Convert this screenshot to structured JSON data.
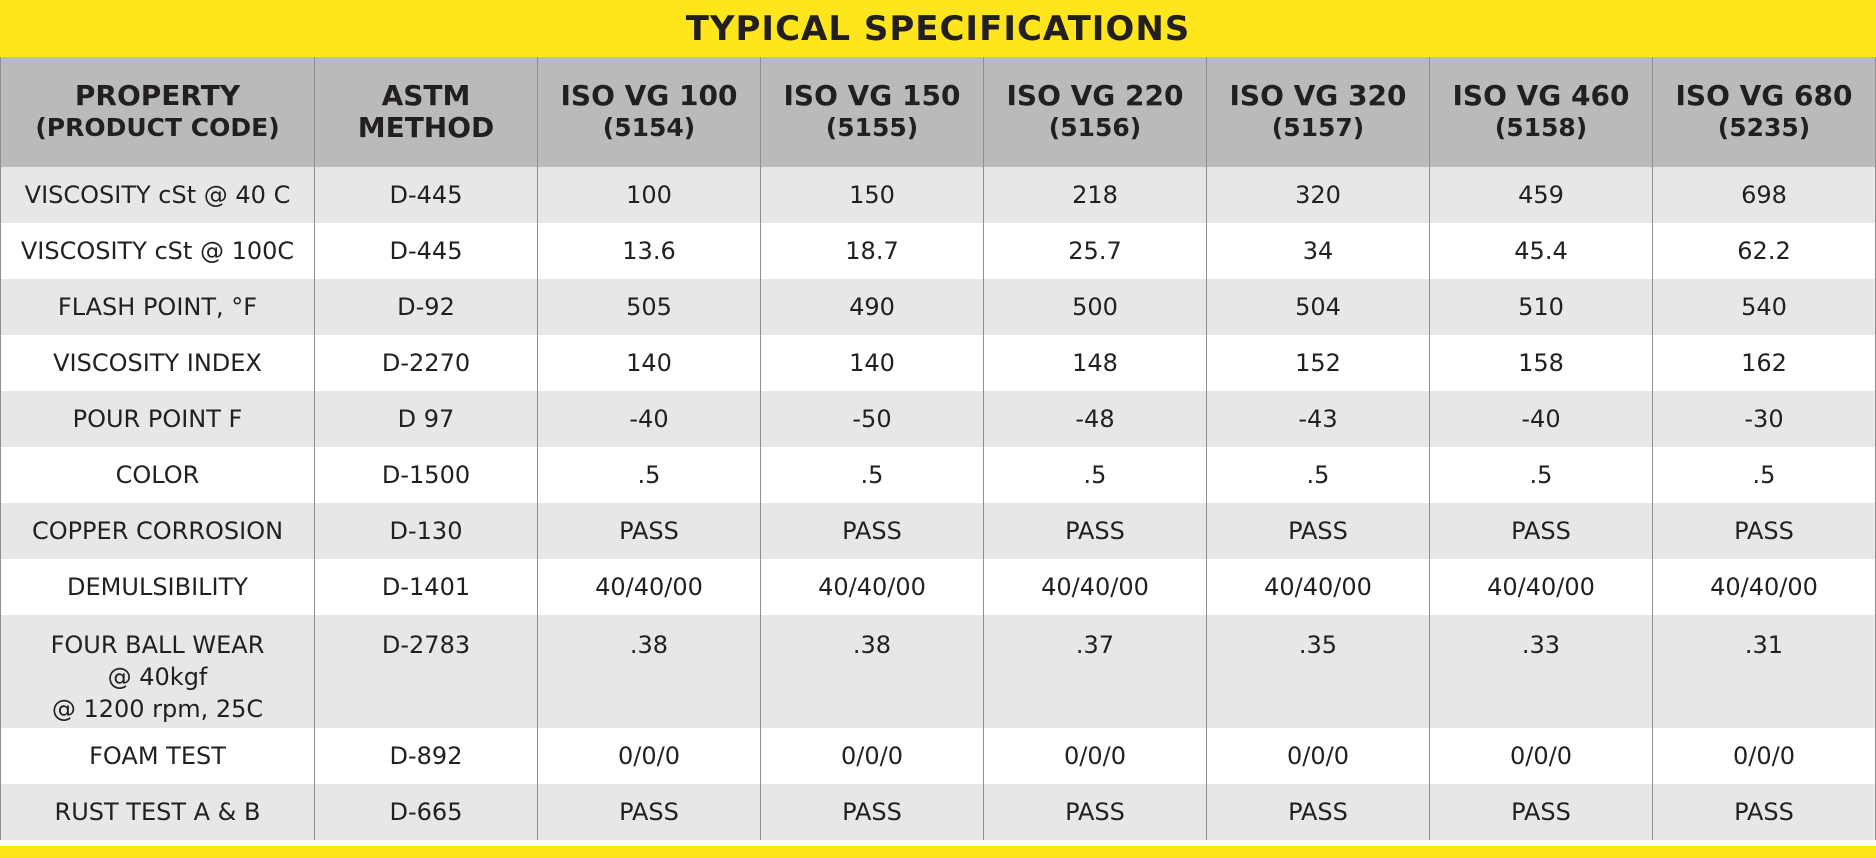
{
  "title": "TYPICAL SPECIFICATIONS",
  "columns": [
    {
      "line1": "PROPERTY",
      "line2": "(PRODUCT CODE)"
    },
    {
      "line1": "ASTM",
      "line2": "METHOD"
    },
    {
      "line1": "ISO VG 100",
      "line2": "(5154)"
    },
    {
      "line1": "ISO VG 150",
      "line2": "(5155)"
    },
    {
      "line1": "ISO VG 220",
      "line2": "(5156)"
    },
    {
      "line1": "ISO VG 320",
      "line2": "(5157)"
    },
    {
      "line1": "ISO VG 460",
      "line2": "(5158)"
    },
    {
      "line1": "ISO VG 680",
      "line2": "(5235)"
    }
  ],
  "rows": [
    {
      "property": [
        "VISCOSITY cSt @ 40 C"
      ],
      "method": "D-445",
      "values": [
        "100",
        "150",
        "218",
        "320",
        "459",
        "698"
      ]
    },
    {
      "property": [
        "VISCOSITY cSt @ 100C"
      ],
      "method": "D-445",
      "values": [
        "13.6",
        "18.7",
        "25.7",
        "34",
        "45.4",
        "62.2"
      ]
    },
    {
      "property": [
        "FLASH POINT, °F"
      ],
      "method": "D-92",
      "values": [
        "505",
        "490",
        "500",
        "504",
        "510",
        "540"
      ]
    },
    {
      "property": [
        "VISCOSITY INDEX"
      ],
      "method": "D-2270",
      "values": [
        "140",
        "140",
        "148",
        "152",
        "158",
        "162"
      ]
    },
    {
      "property": [
        "POUR POINT F"
      ],
      "method": "D 97",
      "values": [
        "-40",
        "-50",
        "-48",
        "-43",
        "-40",
        "-30"
      ]
    },
    {
      "property": [
        "COLOR"
      ],
      "method": "D-1500",
      "values": [
        ".5",
        ".5",
        ".5",
        ".5",
        ".5",
        ".5"
      ]
    },
    {
      "property": [
        "COPPER CORROSION"
      ],
      "method": "D-130",
      "values": [
        "PASS",
        "PASS",
        "PASS",
        "PASS",
        "PASS",
        "PASS"
      ]
    },
    {
      "property": [
        "DEMULSIBILITY"
      ],
      "method": "D-1401",
      "values": [
        "40/40/00",
        "40/40/00",
        "40/40/00",
        "40/40/00",
        "40/40/00",
        "40/40/00"
      ]
    },
    {
      "property": [
        "FOUR BALL WEAR",
        "@ 40kgf",
        "@ 1200 rpm, 25C"
      ],
      "method": "D-2783",
      "values": [
        ".38",
        ".38",
        ".37",
        ".35",
        ".33",
        ".31"
      ]
    },
    {
      "property": [
        "FOAM TEST"
      ],
      "method": "D-892",
      "values": [
        "0/0/0",
        "0/0/0",
        "0/0/0",
        "0/0/0",
        "0/0/0",
        "0/0/0"
      ]
    },
    {
      "property": [
        "RUST TEST A & B"
      ],
      "method": "D-665",
      "values": [
        "PASS",
        "PASS",
        "PASS",
        "PASS",
        "PASS",
        "PASS"
      ]
    }
  ],
  "colors": {
    "accent_yellow": "#ffe61c",
    "header_gray": "#b8babc",
    "row_gray": "#e6e7e8",
    "row_white": "#ffffff",
    "text": "#231f20"
  }
}
